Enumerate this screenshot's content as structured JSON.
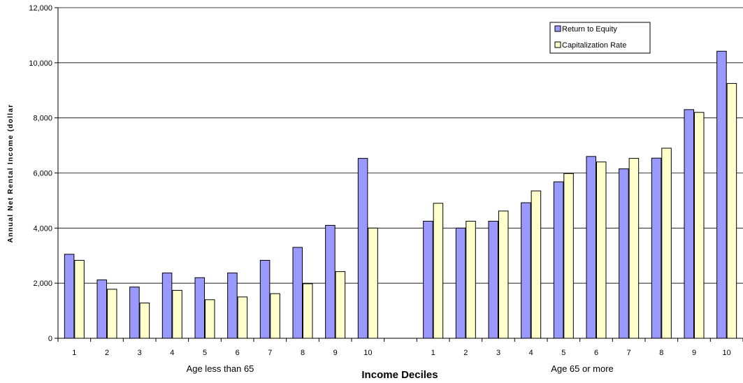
{
  "chart_data": {
    "type": "bar",
    "ylabel": "Annual Net Rental Income (dollar",
    "xlabel": "Income Deciles",
    "ylim": [
      0,
      12000
    ],
    "yticks": [
      0,
      2000,
      4000,
      6000,
      8000,
      10000,
      12000
    ],
    "ytick_labels": [
      "0",
      "2,000",
      "4,000",
      "6,000",
      "8,000",
      "10,000",
      "12,000"
    ],
    "grid": "horizontal",
    "legend_position": "top-right",
    "groups": [
      {
        "label": "Age less than 65",
        "categories": [
          "1",
          "2",
          "3",
          "4",
          "5",
          "6",
          "7",
          "8",
          "9",
          "10"
        ],
        "series": [
          {
            "name": "Return to Equity",
            "values": [
              3050,
              2120,
              1860,
              2370,
              2200,
              2370,
              2830,
              3300,
              4100,
              6530
            ]
          },
          {
            "name": "Capitalization Rate",
            "values": [
              2830,
              1780,
              1280,
              1740,
              1400,
              1500,
              1620,
              1980,
              2420,
              4000
            ]
          }
        ]
      },
      {
        "label": "Age 65 or more",
        "categories": [
          "1",
          "2",
          "3",
          "4",
          "5",
          "6",
          "7",
          "8",
          "9",
          "10"
        ],
        "series": [
          {
            "name": "Return to Equity",
            "values": [
              4250,
              4000,
              4250,
              4920,
              5680,
              6600,
              6150,
              6540,
              8300,
              10420
            ]
          },
          {
            "name": "Capitalization Rate",
            "values": [
              4900,
              4250,
              4620,
              5350,
              5980,
              6400,
              6530,
              6900,
              8200,
              9250
            ]
          }
        ]
      }
    ]
  },
  "colors": {
    "return_to_equity": "#9999ff",
    "capitalization_rate": "#ffffcc",
    "bar_outline": "#000000",
    "gridline": "#000000",
    "background": "#ffffff"
  }
}
